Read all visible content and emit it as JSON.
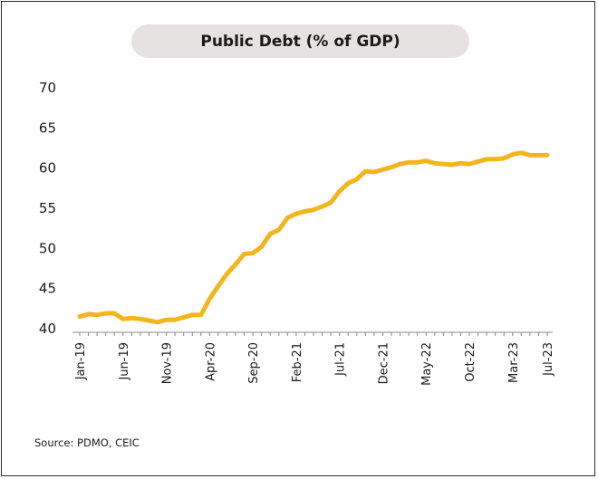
{
  "chart_data": {
    "type": "line",
    "title": "Public Debt (% of GDP)",
    "xlabel": "",
    "ylabel": "",
    "ylim": [
      40,
      70
    ],
    "yticks": [
      40,
      45,
      50,
      55,
      60,
      65,
      70
    ],
    "xtick_labels": [
      "Jan-19",
      "Jun-19",
      "Nov-19",
      "Apr-20",
      "Sep-20",
      "Feb-21",
      "Jul-21",
      "Dec-21",
      "May-22",
      "Oct-22",
      "Mar-23",
      "Jul-23"
    ],
    "grid": false,
    "line_color": "#f2b51d",
    "x": [
      "Jan-19",
      "Feb-19",
      "Mar-19",
      "Apr-19",
      "May-19",
      "Jun-19",
      "Jul-19",
      "Aug-19",
      "Sep-19",
      "Oct-19",
      "Nov-19",
      "Dec-19",
      "Jan-20",
      "Feb-20",
      "Mar-20",
      "Apr-20",
      "May-20",
      "Jun-20",
      "Jul-20",
      "Aug-20",
      "Sep-20",
      "Oct-20",
      "Nov-20",
      "Dec-20",
      "Jan-21",
      "Feb-21",
      "Mar-21",
      "Apr-21",
      "May-21",
      "Jun-21",
      "Jul-21",
      "Aug-21",
      "Sep-21",
      "Oct-21",
      "Nov-21",
      "Dec-21",
      "Jan-22",
      "Feb-22",
      "Mar-22",
      "Apr-22",
      "May-22",
      "Jun-22",
      "Jul-22",
      "Aug-22",
      "Sep-22",
      "Oct-22",
      "Nov-22",
      "Dec-22",
      "Jan-23",
      "Feb-23",
      "Mar-23",
      "Apr-23",
      "May-23",
      "Jun-23",
      "Jul-23"
    ],
    "series": [
      {
        "values": [
          41.4,
          41.7,
          41.6,
          41.8,
          41.8,
          41.1,
          41.2,
          41.1,
          40.9,
          40.7,
          41.0,
          41.0,
          41.3,
          41.6,
          41.6,
          43.6,
          45.2,
          46.7,
          47.9,
          49.2,
          49.3,
          50.1,
          51.7,
          52.2,
          53.7,
          54.2,
          54.5,
          54.7,
          55.1,
          55.6,
          57.0,
          58.0,
          58.5,
          59.5,
          59.4,
          59.7,
          60.0,
          60.4,
          60.6,
          60.6,
          60.8,
          60.5,
          60.4,
          60.3,
          60.5,
          60.4,
          60.7,
          61.0,
          61.0,
          61.1,
          61.6,
          61.8,
          61.5,
          61.5,
          61.5
        ]
      }
    ]
  },
  "source": "Source: PDMO, CEIC"
}
